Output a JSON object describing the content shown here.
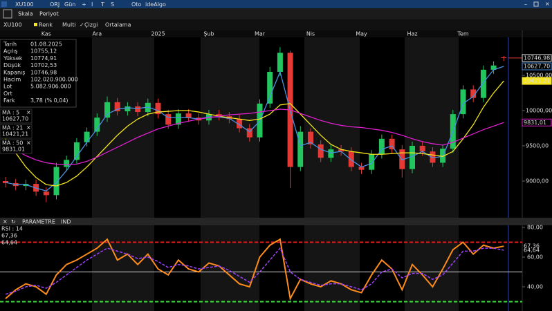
{
  "toolbar": {
    "symbol": "XU100",
    "items": [
      "ORJ",
      "Gün",
      "+",
      "I",
      "T",
      "S",
      "Oto",
      "ideAlgo"
    ]
  },
  "menu": [
    "Skala",
    "Periyot"
  ],
  "options": {
    "symbol": "XU100",
    "items": [
      "Renk",
      "Multi",
      "Çizgi",
      "Ortalama"
    ]
  },
  "info": {
    "rows": [
      {
        "label": "Tarih",
        "value": "01.08.2025"
      },
      {
        "label": "Açılış",
        "value": "10755,12"
      },
      {
        "label": "Yüksek",
        "value": "10774,91",
        "color": "#39d353"
      },
      {
        "label": "Düşük",
        "value": "10702,53",
        "color": "#ff3b3b"
      },
      {
        "label": "Kapanış",
        "value": "10746,98"
      },
      {
        "label": "Hacim",
        "value": "102.020.900.000"
      },
      {
        "label": "Lot",
        "value": "5.082.906.000"
      },
      {
        "label": "Ort"
      },
      {
        "label": "Fark",
        "value": "3,78 (% 0,04)",
        "color": "#39d353"
      }
    ]
  },
  "panel": {
    "items": [
      "PARAMETRE",
      "IND"
    ]
  },
  "chart_data": [
    {
      "type": "candlestick",
      "categories": [
        null,
        null,
        null,
        null,
        "Kas",
        null,
        null,
        null,
        null,
        "Ara",
        null,
        null,
        null,
        null,
        null,
        "2025",
        null,
        null,
        null,
        null,
        "Şub",
        null,
        null,
        null,
        null,
        "Mar",
        null,
        null,
        null,
        null,
        "Nis",
        null,
        null,
        null,
        null,
        "May",
        null,
        null,
        null,
        null,
        "Haz",
        null,
        null,
        null,
        null,
        "Tem",
        null,
        null,
        null,
        null
      ],
      "open": [
        9000,
        8970,
        8930,
        8960,
        8850,
        8800,
        9200,
        9300,
        9550,
        9700,
        9900,
        10120,
        9990,
        10060,
        9980,
        10110,
        9950,
        9800,
        9960,
        9900,
        9860,
        9950,
        9920,
        9880,
        9750,
        9620,
        10100,
        10550,
        10820,
        9200,
        9700,
        9520,
        9330,
        9450,
        9420,
        9200,
        9160,
        9380,
        9600,
        9450,
        9170,
        9500,
        9420,
        9260,
        9460,
        9950,
        10300,
        10180,
        10580,
        10755.12
      ],
      "high": [
        9060,
        9030,
        9020,
        9020,
        8910,
        9260,
        9360,
        9610,
        9760,
        9960,
        10200,
        10180,
        10120,
        10120,
        10170,
        10170,
        10010,
        10020,
        10020,
        9960,
        10010,
        10010,
        9980,
        9940,
        9810,
        10160,
        10620,
        10900,
        10850,
        9780,
        9750,
        9580,
        9510,
        9510,
        9480,
        9260,
        9440,
        9660,
        9660,
        9510,
        9560,
        9560,
        9480,
        9520,
        10010,
        10360,
        10360,
        10640,
        10700,
        10774.91
      ],
      "low": [
        8910,
        8870,
        8870,
        8790,
        8700,
        8740,
        9140,
        9240,
        9490,
        9640,
        9840,
        9930,
        9930,
        9920,
        9920,
        9890,
        9740,
        9740,
        9840,
        9800,
        9800,
        9860,
        9820,
        9690,
        9560,
        9560,
        10040,
        10490,
        8900,
        9140,
        9460,
        9270,
        9270,
        9360,
        9140,
        9100,
        9100,
        9320,
        9390,
        9050,
        9110,
        9360,
        9200,
        9200,
        9400,
        9890,
        10120,
        10120,
        10520,
        10702.53
      ],
      "close": [
        8970,
        8930,
        8960,
        8850,
        8800,
        9200,
        9300,
        9550,
        9700,
        9900,
        10120,
        9990,
        10060,
        9980,
        10110,
        9950,
        9800,
        9960,
        9900,
        9860,
        9950,
        9920,
        9880,
        9750,
        9620,
        10100,
        10550,
        10820,
        9200,
        9700,
        9520,
        9330,
        9450,
        9420,
        9200,
        9160,
        9380,
        9600,
        9450,
        9170,
        9500,
        9420,
        9260,
        9460,
        9950,
        10300,
        10180,
        10580,
        10640,
        10746.98
      ],
      "close_last_label": "10746,98",
      "up_color": "#22c55e",
      "down_color": "#e53935",
      "series": [
        {
          "name": "MA : 5",
          "color": "#4a90e2",
          "last_label": "10627,70",
          "values": [
            8980,
            8950,
            8950,
            8900,
            8860,
            8980,
            9150,
            9350,
            9550,
            9740,
            9950,
            10020,
            10040,
            10030,
            10050,
            10000,
            9900,
            9900,
            9900,
            9880,
            9910,
            9910,
            9890,
            9800,
            9700,
            9850,
            10200,
            10550,
            10000,
            9500,
            9550,
            9450,
            9400,
            9420,
            9300,
            9200,
            9250,
            9450,
            9500,
            9300,
            9350,
            9420,
            9330,
            9350,
            9700,
            10100,
            10200,
            10400,
            10580,
            10627.7
          ]
        },
        {
          "name": "MA : 21",
          "color": "#f5e51b",
          "last_label": "10421,21",
          "values": [
            9600,
            9400,
            9200,
            9050,
            8950,
            8930,
            8980,
            9070,
            9200,
            9350,
            9500,
            9650,
            9780,
            9880,
            9950,
            9980,
            9990,
            10000,
            10000,
            9980,
            9950,
            9920,
            9900,
            9880,
            9860,
            9880,
            9950,
            10080,
            10100,
            9950,
            9800,
            9650,
            9520,
            9450,
            9420,
            9400,
            9380,
            9380,
            9390,
            9400,
            9400,
            9390,
            9370,
            9350,
            9420,
            9600,
            9800,
            10050,
            10250,
            10421.21
          ]
        },
        {
          "name": "MA : 50",
          "color": "#e020d0",
          "last_label": "9831,01",
          "values": [
            9520,
            9440,
            9360,
            9300,
            9260,
            9240,
            9230,
            9240,
            9280,
            9340,
            9410,
            9480,
            9550,
            9620,
            9680,
            9740,
            9780,
            9820,
            9850,
            9880,
            9900,
            9920,
            9940,
            9950,
            9960,
            9980,
            10000,
            10020,
            10010,
            9960,
            9910,
            9860,
            9820,
            9790,
            9770,
            9760,
            9740,
            9720,
            9690,
            9650,
            9600,
            9560,
            9530,
            9510,
            9550,
            9610,
            9670,
            9730,
            9780,
            9831.01
          ]
        }
      ],
      "ylim": [
        8480,
        11040
      ],
      "yticks": [
        {
          "value": 9000,
          "label": "9000,00"
        },
        {
          "value": 9500,
          "label": "9500,00"
        },
        {
          "value": 10000,
          "label": "10000,00"
        },
        {
          "value": 10500,
          "label": "10500,00"
        }
      ]
    },
    {
      "type": "line",
      "title": "RSI : 14",
      "series": [
        {
          "color": "#ff8c1a",
          "last_label": "67,36",
          "values": [
            32,
            38,
            42,
            40,
            35,
            48,
            55,
            58,
            62,
            66,
            72,
            58,
            62,
            55,
            62,
            52,
            48,
            58,
            52,
            50,
            56,
            54,
            48,
            42,
            40,
            60,
            68,
            72,
            32,
            45,
            42,
            40,
            44,
            42,
            38,
            36,
            48,
            58,
            52,
            38,
            55,
            48,
            40,
            52,
            65,
            70,
            62,
            68,
            66,
            67.36
          ]
        },
        {
          "color": "#a040ff",
          "dashed": true,
          "last_label": "64,64",
          "values": [
            35,
            37,
            40,
            41,
            39,
            43,
            48,
            53,
            58,
            62,
            66,
            64,
            62,
            59,
            60,
            57,
            53,
            55,
            54,
            52,
            53,
            54,
            51,
            47,
            43,
            50,
            58,
            66,
            50,
            45,
            43,
            41,
            42,
            42,
            40,
            38,
            42,
            50,
            52,
            46,
            49,
            49,
            45,
            48,
            56,
            64,
            64,
            66,
            66,
            64.64
          ]
        }
      ],
      "levels": [
        {
          "value": 70,
          "color": "#e02020"
        },
        {
          "value": 50,
          "color": "#dddddd",
          "solid": true
        },
        {
          "value": 30,
          "color": "#44dd44"
        }
      ],
      "ylim": [
        23.7,
        81.4
      ],
      "yticks": [
        {
          "value": 40,
          "label": "40,00"
        },
        {
          "value": 60,
          "label": "60,00"
        },
        {
          "value": 80,
          "label": "80,00"
        }
      ]
    }
  ]
}
